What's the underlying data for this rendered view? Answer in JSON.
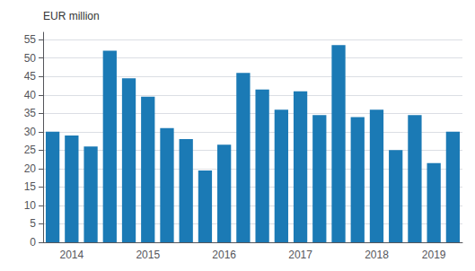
{
  "chart_data": {
    "type": "bar",
    "ylabel": "EUR million",
    "categories": [
      null,
      "2014",
      null,
      null,
      null,
      "2015",
      null,
      null,
      null,
      "2016",
      null,
      null,
      null,
      "2017",
      null,
      null,
      null,
      "2018",
      null,
      null,
      "2019",
      null
    ],
    "values": [
      30.0,
      29.0,
      26.0,
      52.0,
      44.5,
      39.5,
      31.0,
      28.0,
      19.5,
      26.5,
      46.0,
      41.5,
      36.0,
      41.0,
      34.5,
      53.5,
      34.0,
      36.0,
      25.0,
      34.5,
      21.5,
      30.0
    ],
    "color": "#1b7ab5",
    "ylim": [
      0,
      57
    ],
    "yticks": [
      0,
      5,
      10,
      15,
      20,
      25,
      30,
      35,
      40,
      45,
      50,
      55
    ],
    "grid": true
  }
}
